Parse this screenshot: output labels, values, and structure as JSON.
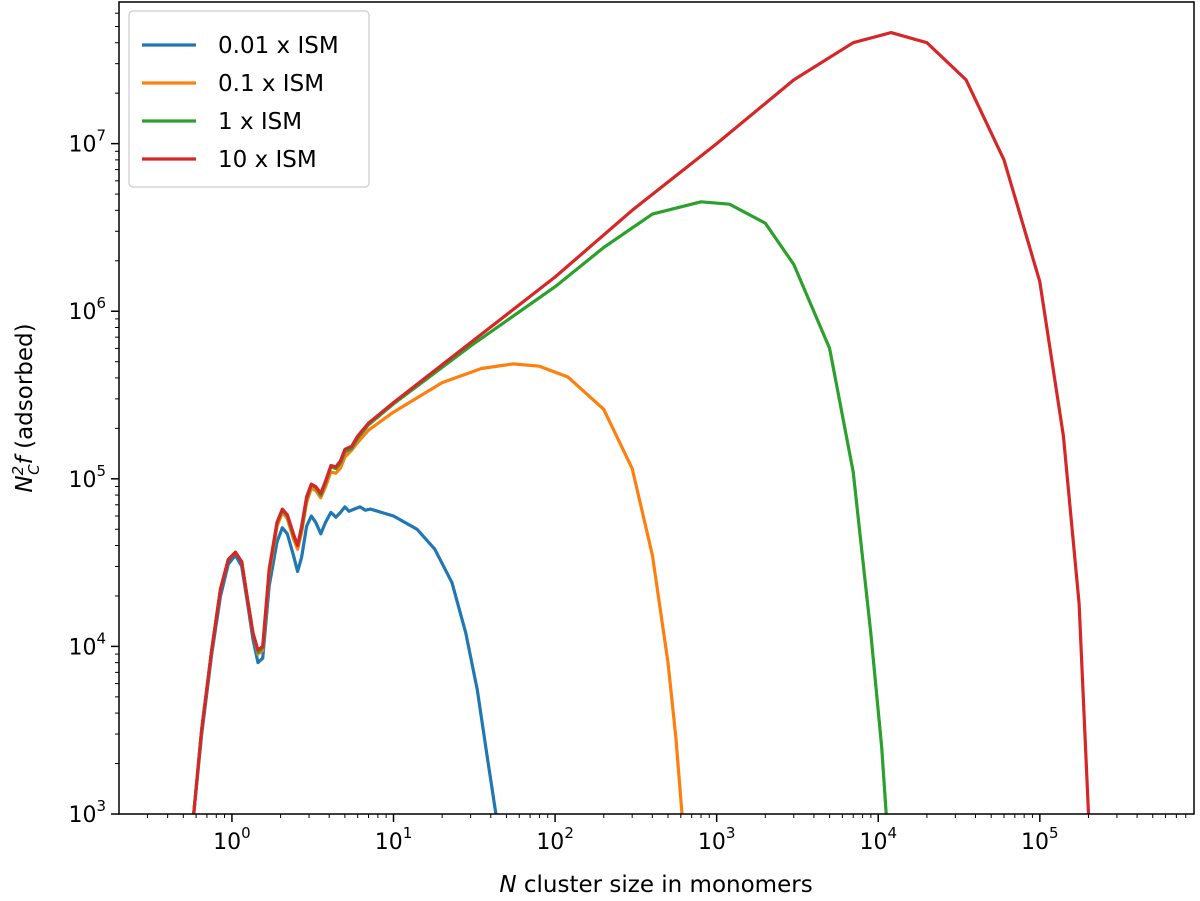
{
  "chart_data": {
    "type": "line",
    "xscale": "log",
    "yscale": "log",
    "xlim": [
      0.2,
      900000
    ],
    "ylim": [
      1000,
      70000000
    ],
    "xlabel": {
      "italic": "N",
      "text": " cluster size in monomers"
    },
    "ylabel": {
      "base": "N",
      "sub": "C",
      "sup": "2",
      "italic2": "f",
      "text": " (adsorbed)"
    },
    "x_ticks": [
      {
        "value": 1,
        "base": "10",
        "exp": "0"
      },
      {
        "value": 10,
        "base": "10",
        "exp": "1"
      },
      {
        "value": 100,
        "base": "10",
        "exp": "2"
      },
      {
        "value": 1000,
        "base": "10",
        "exp": "3"
      },
      {
        "value": 10000,
        "base": "10",
        "exp": "4"
      },
      {
        "value": 100000,
        "base": "10",
        "exp": "5"
      }
    ],
    "y_ticks": [
      {
        "value": 1000,
        "base": "10",
        "exp": "3"
      },
      {
        "value": 10000,
        "base": "10",
        "exp": "4"
      },
      {
        "value": 100000,
        "base": "10",
        "exp": "5"
      },
      {
        "value": 1000000,
        "base": "10",
        "exp": "6"
      },
      {
        "value": 10000000,
        "base": "10",
        "exp": "7"
      }
    ],
    "legend": {
      "position": "upper-left"
    },
    "series": [
      {
        "name": "0.01 x ISM",
        "color": "#1f77b4",
        "points": [
          [
            0.58,
            1000
          ],
          [
            0.65,
            3000
          ],
          [
            0.75,
            9000
          ],
          [
            0.85,
            20000
          ],
          [
            0.95,
            31000
          ],
          [
            1.05,
            35000
          ],
          [
            1.15,
            30000
          ],
          [
            1.25,
            18000
          ],
          [
            1.35,
            11000
          ],
          [
            1.45,
            8000
          ],
          [
            1.55,
            8500
          ],
          [
            1.7,
            23000
          ],
          [
            1.9,
            42000
          ],
          [
            2.05,
            51000
          ],
          [
            2.2,
            47000
          ],
          [
            2.4,
            35000
          ],
          [
            2.55,
            28000
          ],
          [
            2.7,
            34000
          ],
          [
            2.9,
            52000
          ],
          [
            3.1,
            60000
          ],
          [
            3.3,
            55000
          ],
          [
            3.55,
            47000
          ],
          [
            3.8,
            55000
          ],
          [
            4.1,
            63000
          ],
          [
            4.4,
            59000
          ],
          [
            4.7,
            63000
          ],
          [
            5.0,
            68000
          ],
          [
            5.3,
            64000
          ],
          [
            5.7,
            66000
          ],
          [
            6.2,
            68000
          ],
          [
            6.7,
            65000
          ],
          [
            7.2,
            66000
          ],
          [
            8,
            64000
          ],
          [
            10,
            60000
          ],
          [
            14,
            50000
          ],
          [
            18,
            38000
          ],
          [
            23,
            24000
          ],
          [
            28,
            12000
          ],
          [
            33,
            5500
          ],
          [
            38,
            2200
          ],
          [
            43,
            1000
          ]
        ]
      },
      {
        "name": "0.1 x ISM",
        "color": "#ff7f0e",
        "points": [
          [
            0.58,
            1000
          ],
          [
            0.65,
            3200
          ],
          [
            0.75,
            9500
          ],
          [
            0.85,
            22000
          ],
          [
            0.95,
            33000
          ],
          [
            1.05,
            36500
          ],
          [
            1.15,
            32000
          ],
          [
            1.25,
            19000
          ],
          [
            1.35,
            12000
          ],
          [
            1.45,
            9000
          ],
          [
            1.55,
            9500
          ],
          [
            1.7,
            27000
          ],
          [
            1.9,
            52000
          ],
          [
            2.05,
            63000
          ],
          [
            2.2,
            58000
          ],
          [
            2.4,
            44000
          ],
          [
            2.55,
            38000
          ],
          [
            2.7,
            48000
          ],
          [
            2.9,
            72000
          ],
          [
            3.1,
            88000
          ],
          [
            3.3,
            85000
          ],
          [
            3.55,
            77000
          ],
          [
            3.8,
            90000
          ],
          [
            4.1,
            110000
          ],
          [
            4.4,
            108000
          ],
          [
            4.7,
            116000
          ],
          [
            5.0,
            135000
          ],
          [
            5.5,
            148000
          ],
          [
            6.0,
            165000
          ],
          [
            7,
            195000
          ],
          [
            10,
            250000
          ],
          [
            20,
            375000
          ],
          [
            35,
            455000
          ],
          [
            55,
            485000
          ],
          [
            80,
            470000
          ],
          [
            120,
            405000
          ],
          [
            200,
            260000
          ],
          [
            300,
            115000
          ],
          [
            400,
            35000
          ],
          [
            500,
            8000
          ],
          [
            560,
            2800
          ],
          [
            610,
            1000
          ]
        ]
      },
      {
        "name": "1 x ISM",
        "color": "#2ca02c",
        "points": [
          [
            0.58,
            1000
          ],
          [
            0.65,
            3200
          ],
          [
            0.75,
            9500
          ],
          [
            0.85,
            22000
          ],
          [
            0.95,
            33000
          ],
          [
            1.05,
            36500
          ],
          [
            1.15,
            32000
          ],
          [
            1.25,
            19000
          ],
          [
            1.35,
            12000
          ],
          [
            1.45,
            9200
          ],
          [
            1.55,
            9800
          ],
          [
            1.7,
            28000
          ],
          [
            1.9,
            54000
          ],
          [
            2.05,
            65000
          ],
          [
            2.2,
            60000
          ],
          [
            2.4,
            46000
          ],
          [
            2.55,
            40000
          ],
          [
            2.7,
            50000
          ],
          [
            2.9,
            76000
          ],
          [
            3.1,
            92000
          ],
          [
            3.3,
            89000
          ],
          [
            3.55,
            80000
          ],
          [
            3.8,
            95000
          ],
          [
            4.1,
            118000
          ],
          [
            4.4,
            115000
          ],
          [
            4.7,
            125000
          ],
          [
            5.0,
            145000
          ],
          [
            5.5,
            152000
          ],
          [
            6.0,
            175000
          ],
          [
            7,
            210000
          ],
          [
            10,
            280000
          ],
          [
            30,
            620000
          ],
          [
            100,
            1400000
          ],
          [
            200,
            2400000
          ],
          [
            400,
            3800000
          ],
          [
            800,
            4500000
          ],
          [
            1200,
            4350000
          ],
          [
            2000,
            3350000
          ],
          [
            3000,
            1900000
          ],
          [
            5000,
            600000
          ],
          [
            7000,
            110000
          ],
          [
            9000,
            12000
          ],
          [
            10500,
            2500
          ],
          [
            11200,
            1000
          ]
        ]
      },
      {
        "name": "10 x ISM",
        "color": "#d62728",
        "points": [
          [
            0.58,
            1000
          ],
          [
            0.65,
            3200
          ],
          [
            0.75,
            9500
          ],
          [
            0.85,
            22000
          ],
          [
            0.95,
            33000
          ],
          [
            1.05,
            36500
          ],
          [
            1.15,
            32000
          ],
          [
            1.25,
            19000
          ],
          [
            1.35,
            12000
          ],
          [
            1.45,
            9500
          ],
          [
            1.55,
            10000
          ],
          [
            1.7,
            29000
          ],
          [
            1.9,
            55000
          ],
          [
            2.05,
            66000
          ],
          [
            2.2,
            61000
          ],
          [
            2.4,
            47000
          ],
          [
            2.55,
            40000
          ],
          [
            2.7,
            52000
          ],
          [
            2.9,
            78000
          ],
          [
            3.1,
            93000
          ],
          [
            3.3,
            90000
          ],
          [
            3.55,
            82000
          ],
          [
            3.8,
            97000
          ],
          [
            4.1,
            120000
          ],
          [
            4.4,
            118000
          ],
          [
            4.7,
            128000
          ],
          [
            5.0,
            150000
          ],
          [
            5.5,
            156000
          ],
          [
            6.0,
            180000
          ],
          [
            7,
            215000
          ],
          [
            10,
            285000
          ],
          [
            30,
            650000
          ],
          [
            100,
            1600000
          ],
          [
            300,
            4000000
          ],
          [
            1000,
            10000000
          ],
          [
            3000,
            24000000
          ],
          [
            7000,
            40000000
          ],
          [
            12000,
            46000000
          ],
          [
            20000,
            40000000
          ],
          [
            35000,
            24000000
          ],
          [
            60000,
            8000000
          ],
          [
            100000,
            1500000
          ],
          [
            140000,
            180000
          ],
          [
            175000,
            18000
          ],
          [
            200000,
            1000
          ]
        ]
      }
    ]
  }
}
